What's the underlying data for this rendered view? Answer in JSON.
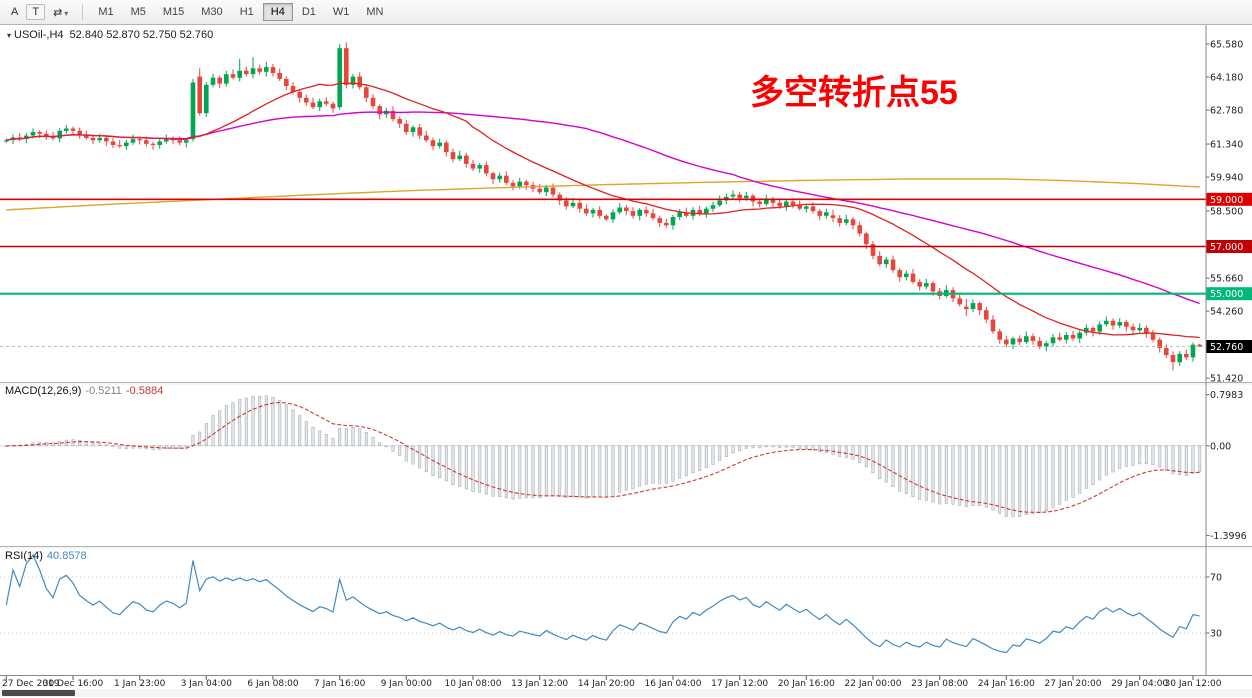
{
  "toolbar": {
    "left_buttons": [
      {
        "id": "cursor",
        "label": "A"
      },
      {
        "id": "text",
        "label": "T"
      },
      {
        "id": "cycle",
        "label": "⇄",
        "caret": "▾"
      }
    ],
    "timeframes": [
      "M1",
      "M5",
      "M15",
      "M30",
      "H1",
      "H4",
      "D1",
      "W1",
      "MN"
    ],
    "active_timeframe": "H4"
  },
  "chart": {
    "dropdown_icon": "▾",
    "title": "USOil-,H4",
    "ohlc": "52.840 52.870 52.750 52.760",
    "annotation": {
      "text": "多空转折点55",
      "color": "#ff0000"
    }
  },
  "macd_panel": {
    "name": "MACD(12,26,9)",
    "main_value": "-0.5211",
    "signal_value": "-0.5884"
  },
  "rsi_panel": {
    "name": "RSI(14)",
    "value": "40.8578"
  },
  "chart_data": {
    "type": "candlestick",
    "symbol": "USOil-",
    "period": "H4",
    "ohlc_display": {
      "open": "52.840",
      "high": "52.870",
      "low": "52.750",
      "close": "52.760"
    },
    "ylim": [
      51.3,
      66.3
    ],
    "open_rule": "previous_close",
    "wick_base": 0.14,
    "closes": [
      61.5,
      61.62,
      61.55,
      61.7,
      61.85,
      61.78,
      61.66,
      61.58,
      61.9,
      62.0,
      61.9,
      61.7,
      61.6,
      61.5,
      61.6,
      61.45,
      61.3,
      61.25,
      61.4,
      61.55,
      61.5,
      61.35,
      61.3,
      61.45,
      61.55,
      61.5,
      61.4,
      61.5,
      63.95,
      62.65,
      63.85,
      64.15,
      63.9,
      64.3,
      64.15,
      64.45,
      64.3,
      64.55,
      64.4,
      64.6,
      64.35,
      64.1,
      63.8,
      63.55,
      63.3,
      63.1,
      62.9,
      63.15,
      63.05,
      62.85,
      65.4,
      63.85,
      64.2,
      63.75,
      63.3,
      62.95,
      62.6,
      62.75,
      62.4,
      62.2,
      61.85,
      62.05,
      61.7,
      61.5,
      61.25,
      61.4,
      61.0,
      60.7,
      60.85,
      60.5,
      60.3,
      60.45,
      60.1,
      59.85,
      60.0,
      59.7,
      59.55,
      59.75,
      59.6,
      59.45,
      59.3,
      59.5,
      59.2,
      58.95,
      58.7,
      58.85,
      58.6,
      58.4,
      58.55,
      58.3,
      58.15,
      58.45,
      58.65,
      58.5,
      58.3,
      58.55,
      58.4,
      58.2,
      58.0,
      57.9,
      58.25,
      58.45,
      58.3,
      58.55,
      58.4,
      58.6,
      58.75,
      58.95,
      59.1,
      59.2,
      59.05,
      59.15,
      58.9,
      58.8,
      59.0,
      58.85,
      58.7,
      58.9,
      58.75,
      58.6,
      58.7,
      58.5,
      58.3,
      58.45,
      58.2,
      58.0,
      58.15,
      57.9,
      57.55,
      57.1,
      56.6,
      56.25,
      56.45,
      56.0,
      55.7,
      55.85,
      55.5,
      55.3,
      55.45,
      55.1,
      54.9,
      55.15,
      54.8,
      54.55,
      54.35,
      54.6,
      54.3,
      53.9,
      53.4,
      53.05,
      52.85,
      53.1,
      52.95,
      53.2,
      53.0,
      52.75,
      52.9,
      53.15,
      53.05,
      53.25,
      53.1,
      53.35,
      53.55,
      53.4,
      53.7,
      53.85,
      53.65,
      53.8,
      53.6,
      53.45,
      53.55,
      53.3,
      53.05,
      52.7,
      52.4,
      52.1,
      52.45,
      52.3,
      52.84,
      52.76
    ],
    "candle_overrides": {
      "9": {
        "h": 62.15
      },
      "28": {
        "o": 61.55,
        "h": 64.1,
        "l": 61.45
      },
      "29": {
        "o": 64.2,
        "h": 64.55,
        "l": 62.55
      },
      "35": {
        "h": 64.95
      },
      "37": {
        "h": 65.02
      },
      "39": {
        "h": 64.82
      },
      "50": {
        "o": 62.9,
        "h": 65.58,
        "l": 62.8
      },
      "51": {
        "h": 65.65,
        "l": 63.7
      },
      "109": {
        "o": 59.12,
        "h": 59.38,
        "l": 58.98
      },
      "124": {
        "o": 58.32,
        "h": 58.55,
        "l": 58.02
      },
      "144": {
        "o": 54.45,
        "h": 54.78,
        "l": 54.05
      },
      "175": {
        "h": 52.55,
        "l": 51.75
      },
      "179": {
        "o": 52.84,
        "h": 52.87,
        "l": 52.75
      }
    },
    "colors": {
      "up": "#00a651",
      "down": "#e8453c",
      "ma_fast": "#e02020",
      "ma_mid": "#d400d4",
      "ma_slow": "#dfa42a",
      "macd_hist": "#e3e7ec",
      "macd_hist_stroke": "#98a0a8",
      "macd_signal": "#d03a34",
      "rsi": "#3f8ac4"
    },
    "ma": {
      "fast_period": 20,
      "mid_period": 60,
      "slow_points": [
        [
          0,
          58.55
        ],
        [
          15,
          58.78
        ],
        [
          30,
          58.98
        ],
        [
          45,
          59.18
        ],
        [
          60,
          59.36
        ],
        [
          75,
          59.5
        ],
        [
          90,
          59.62
        ],
        [
          105,
          59.72
        ],
        [
          120,
          59.8
        ],
        [
          135,
          59.86
        ],
        [
          150,
          59.86
        ],
        [
          160,
          59.78
        ],
        [
          170,
          59.66
        ],
        [
          179,
          59.52
        ]
      ]
    },
    "price_axis_labels": [
      {
        "t": "65.580",
        "p": 65.58
      },
      {
        "t": "64.180",
        "p": 64.18
      },
      {
        "t": "62.780",
        "p": 62.78
      },
      {
        "t": "61.340",
        "p": 61.34
      },
      {
        "t": "59.940",
        "p": 59.94
      },
      {
        "t": "58.500",
        "p": 58.5
      },
      {
        "t": "55.660",
        "p": 55.66
      },
      {
        "t": "54.260",
        "p": 54.26
      },
      {
        "t": "51.420",
        "p": 51.42
      }
    ],
    "hlines": [
      {
        "price": 59.0,
        "color": "#dd0000",
        "badge": "59.000",
        "width": 1.6
      },
      {
        "price": 57.0,
        "color": "#c00000",
        "badge": "57.000",
        "width": 1.6
      },
      {
        "price": 55.0,
        "color": "#00b87a",
        "badge": "55.000",
        "width": 2.2
      }
    ],
    "current_price": {
      "value": 52.76,
      "text": "52.760"
    },
    "macd": {
      "view": [
        -1.55,
        0.95
      ],
      "labels": [
        {
          "t": "0.7983",
          "v": 0.7983
        },
        {
          "t": "0.00",
          "v": 0
        },
        {
          "t": "-1.3996",
          "v": -1.3996
        }
      ]
    },
    "rsi": {
      "period": 14,
      "view": [
        0,
        90
      ],
      "levels": [
        {
          "t": "70",
          "v": 70
        },
        {
          "t": "30",
          "v": 30
        }
      ]
    },
    "time_labels": [
      {
        "t": "27 Dec 2019",
        "i": 0
      },
      {
        "t": "30 Dec 16:00",
        "i": 10
      },
      {
        "t": "1 Jan 23:00",
        "i": 20
      },
      {
        "t": "3 Jan 04:00",
        "i": 30
      },
      {
        "t": "6 Jan 08:00",
        "i": 40
      },
      {
        "t": "7 Jan 16:00",
        "i": 50
      },
      {
        "t": "9 Jan 00:00",
        "i": 60
      },
      {
        "t": "10 Jan 08:00",
        "i": 70
      },
      {
        "t": "13 Jan 12:00",
        "i": 80
      },
      {
        "t": "14 Jan 20:00",
        "i": 90
      },
      {
        "t": "16 Jan 04:00",
        "i": 100
      },
      {
        "t": "17 Jan 12:00",
        "i": 110
      },
      {
        "t": "20 Jan 16:00",
        "i": 120
      },
      {
        "t": "22 Jan 00:00",
        "i": 130
      },
      {
        "t": "23 Jan 08:00",
        "i": 140
      },
      {
        "t": "24 Jan 16:00",
        "i": 150
      },
      {
        "t": "27 Jan 20:00",
        "i": 160
      },
      {
        "t": "29 Jan 04:00",
        "i": 170
      },
      {
        "t": "30 Jan 12:00",
        "i": 178
      }
    ]
  }
}
